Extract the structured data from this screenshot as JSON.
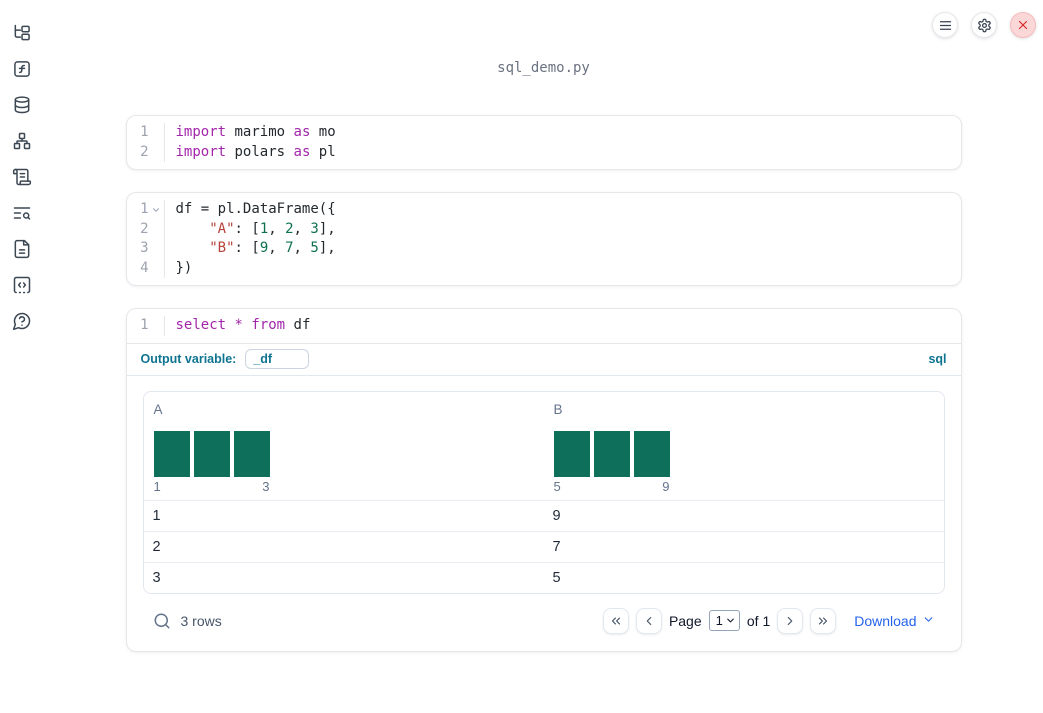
{
  "app": {
    "title": "sql_demo.py"
  },
  "topbar": {
    "buttons": [
      {
        "name": "menu-button",
        "icon": "menu"
      },
      {
        "name": "settings-button",
        "icon": "gear"
      },
      {
        "name": "shutdown-button",
        "icon": "close-x",
        "variant": "danger"
      }
    ]
  },
  "sidebar": {
    "icons": [
      "file-tree",
      "function-square",
      "database",
      "dependency-graph",
      "logs-scroll",
      "text-search",
      "document",
      "code-snippets",
      "help-chat"
    ]
  },
  "cells": [
    {
      "name": "imports-cell",
      "lines": [
        {
          "n": "1",
          "fold": false,
          "tokens": [
            [
              "kw",
              "import"
            ],
            [
              "pl",
              " marimo "
            ],
            [
              "kw",
              "as"
            ],
            [
              "pl",
              " mo"
            ]
          ]
        },
        {
          "n": "2",
          "fold": false,
          "tokens": [
            [
              "kw",
              "import"
            ],
            [
              "pl",
              " polars "
            ],
            [
              "kw",
              "as"
            ],
            [
              "pl",
              " pl"
            ]
          ]
        }
      ]
    },
    {
      "name": "dataframe-cell",
      "lines": [
        {
          "n": "1",
          "fold": true,
          "tokens": [
            [
              "pl",
              "df = pl.DataFrame({"
            ]
          ]
        },
        {
          "n": "2",
          "fold": false,
          "tokens": [
            [
              "pl",
              "    "
            ],
            [
              "str",
              "\"A\""
            ],
            [
              "pl",
              ": ["
            ],
            [
              "num",
              "1"
            ],
            [
              "pl",
              ", "
            ],
            [
              "num",
              "2"
            ],
            [
              "pl",
              ", "
            ],
            [
              "num",
              "3"
            ],
            [
              "pl",
              "],"
            ]
          ]
        },
        {
          "n": "3",
          "fold": false,
          "tokens": [
            [
              "pl",
              "    "
            ],
            [
              "str",
              "\"B\""
            ],
            [
              "pl",
              ": ["
            ],
            [
              "num",
              "9"
            ],
            [
              "pl",
              ", "
            ],
            [
              "num",
              "7"
            ],
            [
              "pl",
              ", "
            ],
            [
              "num",
              "5"
            ],
            [
              "pl",
              "],"
            ]
          ]
        },
        {
          "n": "4",
          "fold": false,
          "tokens": [
            [
              "pl",
              "})"
            ]
          ]
        }
      ]
    },
    {
      "name": "sql-cell",
      "lines": [
        {
          "n": "1",
          "fold": false,
          "tokens": [
            [
              "kw",
              "select"
            ],
            [
              "pl",
              " "
            ],
            [
              "kw",
              "*"
            ],
            [
              "pl",
              " "
            ],
            [
              "kw",
              "from"
            ],
            [
              "pl",
              " df"
            ]
          ]
        }
      ]
    }
  ],
  "sql_meta": {
    "output_variable_label": "Output variable:",
    "output_variable_value": "_df",
    "language_label": "sql"
  },
  "table": {
    "columns": [
      {
        "name": "A",
        "histogram": {
          "bar_count": 3,
          "min_label": "1",
          "max_label": "3"
        }
      },
      {
        "name": "B",
        "histogram": {
          "bar_count": 3,
          "min_label": "5",
          "max_label": "9"
        }
      }
    ],
    "rows": [
      [
        "1",
        "9"
      ],
      [
        "2",
        "7"
      ],
      [
        "3",
        "5"
      ]
    ],
    "footer": {
      "search_icon": "search",
      "row_count_text": "3 rows",
      "pager_icons": [
        "chevrons-left",
        "chevron-left",
        "chevron-right",
        "chevrons-right"
      ],
      "page_label": "Page",
      "page_value": "1",
      "of_text": "of 1",
      "download_label": "Download",
      "download_icon": "chevron-down"
    }
  },
  "colors": {
    "keyword": "#a226aa",
    "string": "#b5433b",
    "number": "#0f7050",
    "bar": "#0e6f5b",
    "accent": "#0e7490",
    "link_blue": "#2563eb",
    "danger": "#dc2626"
  }
}
